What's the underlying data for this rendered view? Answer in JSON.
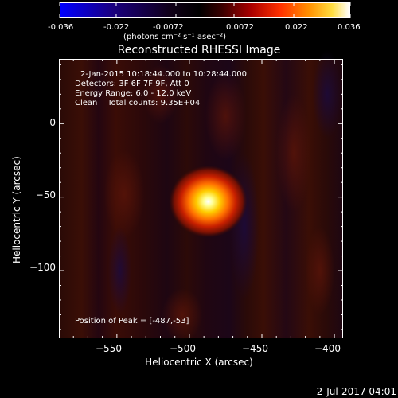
{
  "colorbar": {
    "tick_labels": [
      "-0.036",
      "-0.022",
      "-0.0072",
      "0.0072",
      "0.022",
      "0.036"
    ],
    "units": "(photons cm⁻² s⁻¹ asec⁻²)"
  },
  "title": "Reconstructed RHESSI Image",
  "annotations": {
    "time_range": "2-Jan-2015 10:18:44.000 to 10:28:44.000",
    "detectors": "Detectors: 3F 6F 7F 9F, Att 0",
    "energy": "Energy Range: 6.0 - 12.0 keV",
    "algorithm": "Clean    Total counts: 9.35E+04",
    "peak": "Position of Peak = [-487,-53]"
  },
  "footer": {
    "date": "2-Jul-2017 04:01"
  },
  "chart_data": {
    "type": "heatmap",
    "title": "Reconstructed RHESSI Image",
    "xlabel": "Heliocentric X (arcsec)",
    "ylabel": "Heliocentric Y (arcsec)",
    "xlim": [
      -590,
      -394
    ],
    "ylim": [
      -146,
      44
    ],
    "x_ticks": [
      -550,
      -500,
      -450,
      -400
    ],
    "x_tick_labels": [
      "−550",
      "−500",
      "−450",
      "−400"
    ],
    "y_ticks": [
      0,
      -50,
      -100
    ],
    "y_tick_labels": [
      "0",
      "−50",
      "−100"
    ],
    "colorbar_range": [
      -0.036,
      0.036
    ],
    "colormap": "red-temperature (blue to white)",
    "peak": {
      "x": -487,
      "y": -53
    },
    "source_sigma_arcsec": 9
  }
}
